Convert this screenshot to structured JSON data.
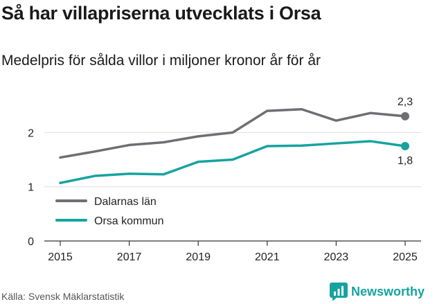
{
  "title": "Så har villapriserna utvecklats i Orsa",
  "subtitle": "Medelpris för sålda villor i miljoner kronor år för år",
  "source": "Källa: Svensk Mäklarstatistik",
  "brand": {
    "name": "Newsworthy",
    "icon": "newsworthy-logo-icon",
    "color": "#16a3a0"
  },
  "chart_data": {
    "type": "line",
    "title": "Så har villapriserna utvecklats i Orsa",
    "xlabel": "",
    "ylabel": "",
    "x": [
      2015,
      2016,
      2017,
      2018,
      2019,
      2020,
      2021,
      2022,
      2023,
      2024,
      2025
    ],
    "x_ticks": [
      "2015",
      "2017",
      "2019",
      "2021",
      "2023",
      "2025"
    ],
    "y_ticks": [
      "0",
      "1",
      "2"
    ],
    "ylim": [
      0,
      2.6
    ],
    "legend_position": "left",
    "series": [
      {
        "name": "Dalarnas län",
        "color": "#6e6e73",
        "values": [
          1.54,
          1.65,
          1.77,
          1.82,
          1.93,
          2.0,
          2.4,
          2.43,
          2.22,
          2.36,
          2.3
        ],
        "end_label": "2,3"
      },
      {
        "name": "Orsa kommun",
        "color": "#16a3a0",
        "values": [
          1.07,
          1.2,
          1.24,
          1.23,
          1.46,
          1.5,
          1.75,
          1.76,
          1.8,
          1.84,
          1.75
        ],
        "end_label": "1,8"
      }
    ]
  }
}
